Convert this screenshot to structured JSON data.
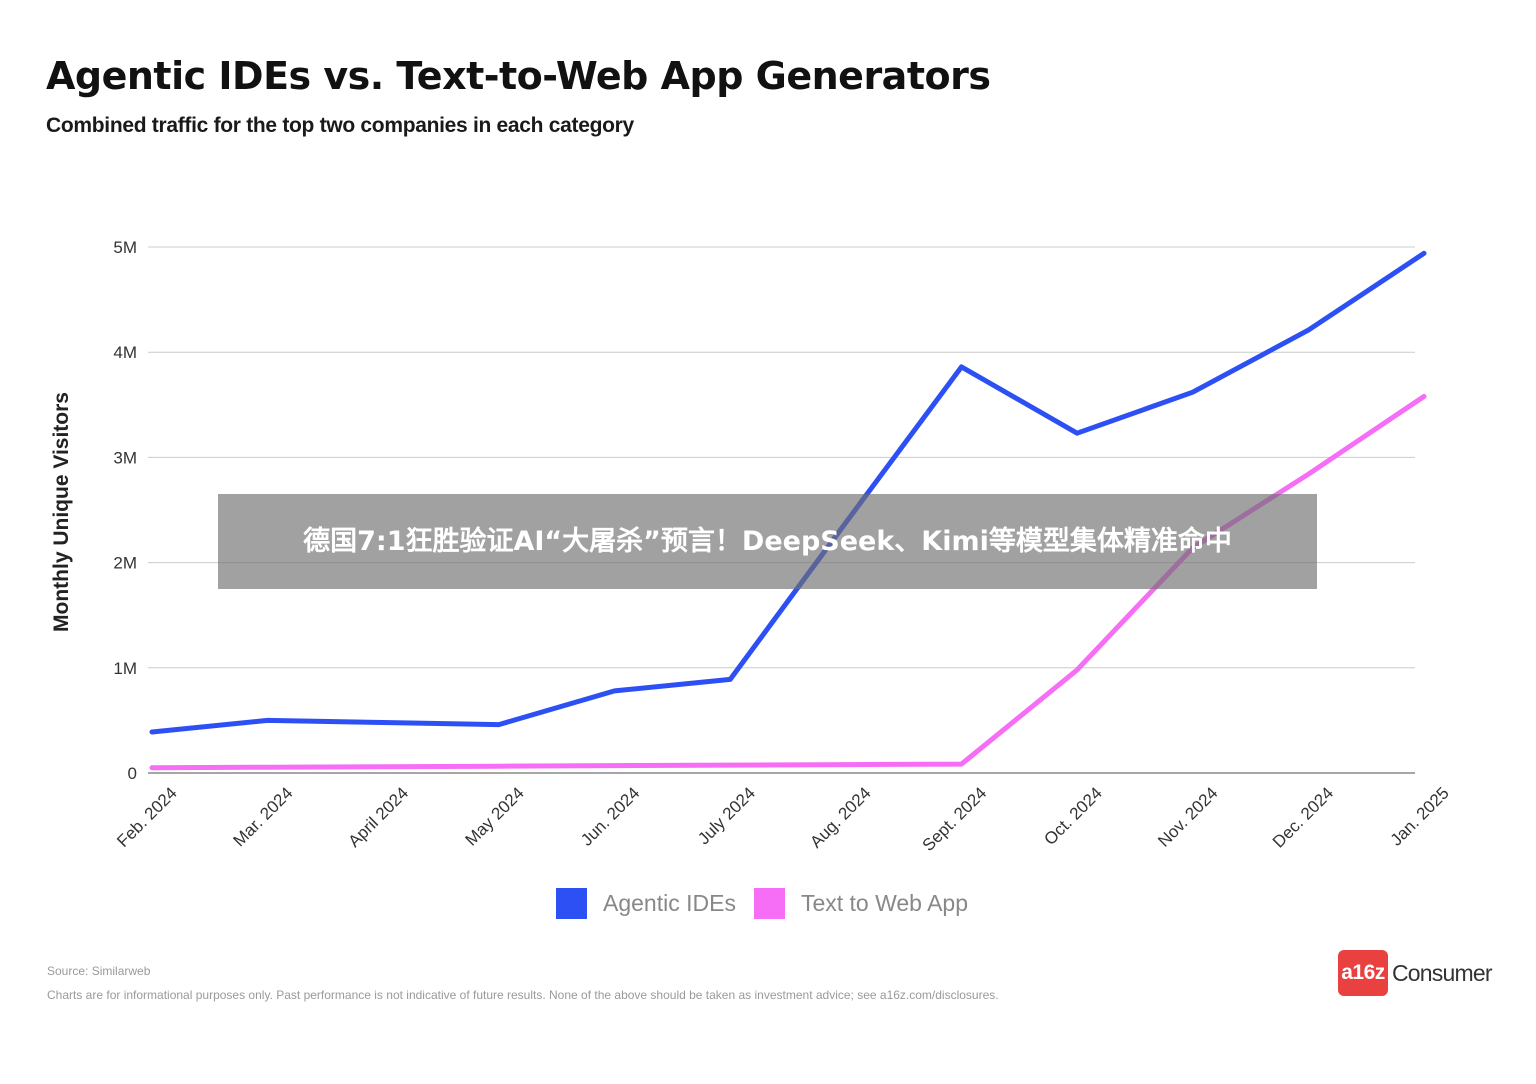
{
  "title": "Agentic IDEs vs. Text-to-Web App Generators",
  "subtitle": "Combined traffic for the top two companies in each category",
  "banner": "德国7:1狂胜验证AI“大屠杀”预言！DeepSeek、Kimi等模型集体精准命中",
  "legend": [
    {
      "name": "Agentic IDEs",
      "color": "#2d50f5"
    },
    {
      "name": "Text to Web App",
      "color": "#f56ef5"
    }
  ],
  "footer": {
    "source": "Source: Similarweb",
    "disclaimer": "Charts are for informational purposes only. Past performance is not indicative of future results. None of the above should be taken as investment advice; see a16z.com/disclosures.",
    "brand_badge": "a16z",
    "brand_text": "Consumer"
  },
  "colors": {
    "agentic": "#2d50f5",
    "textweb": "#f56ef5",
    "grid": "#cccccc",
    "axis": "#888888"
  },
  "chart_data": {
    "type": "line",
    "title": "Agentic IDEs vs. Text-to-Web App Generators",
    "subtitle": "Combined traffic for the top two companies in each category",
    "xlabel": "",
    "ylabel": "Monthly Unique Visitors",
    "categories": [
      "Feb. 2024",
      "Mar. 2024",
      "April 2024",
      "May 2024",
      "Jun. 2024",
      "July 2024",
      "Aug. 2024",
      "Sept. 2024",
      "Oct. 2024",
      "Nov. 2024",
      "Dec. 2024",
      "Jan. 2025"
    ],
    "y_ticks": [
      0,
      1000000,
      2000000,
      3000000,
      4000000,
      5000000
    ],
    "y_tick_labels": [
      "0",
      "1M",
      "2M",
      "3M",
      "4M",
      "5M"
    ],
    "ylim": [
      0,
      5000000
    ],
    "grid": true,
    "legend_position": "bottom",
    "series": [
      {
        "name": "Agentic IDEs",
        "values": [
          390000,
          500000,
          480000,
          460000,
          780000,
          890000,
          2380000,
          3860000,
          3230000,
          3620000,
          4210000,
          4940000
        ]
      },
      {
        "name": "Text to Web App",
        "values": [
          50000,
          55000,
          60000,
          65000,
          70000,
          75000,
          80000,
          85000,
          980000,
          2140000,
          2840000,
          3580000
        ]
      }
    ]
  }
}
